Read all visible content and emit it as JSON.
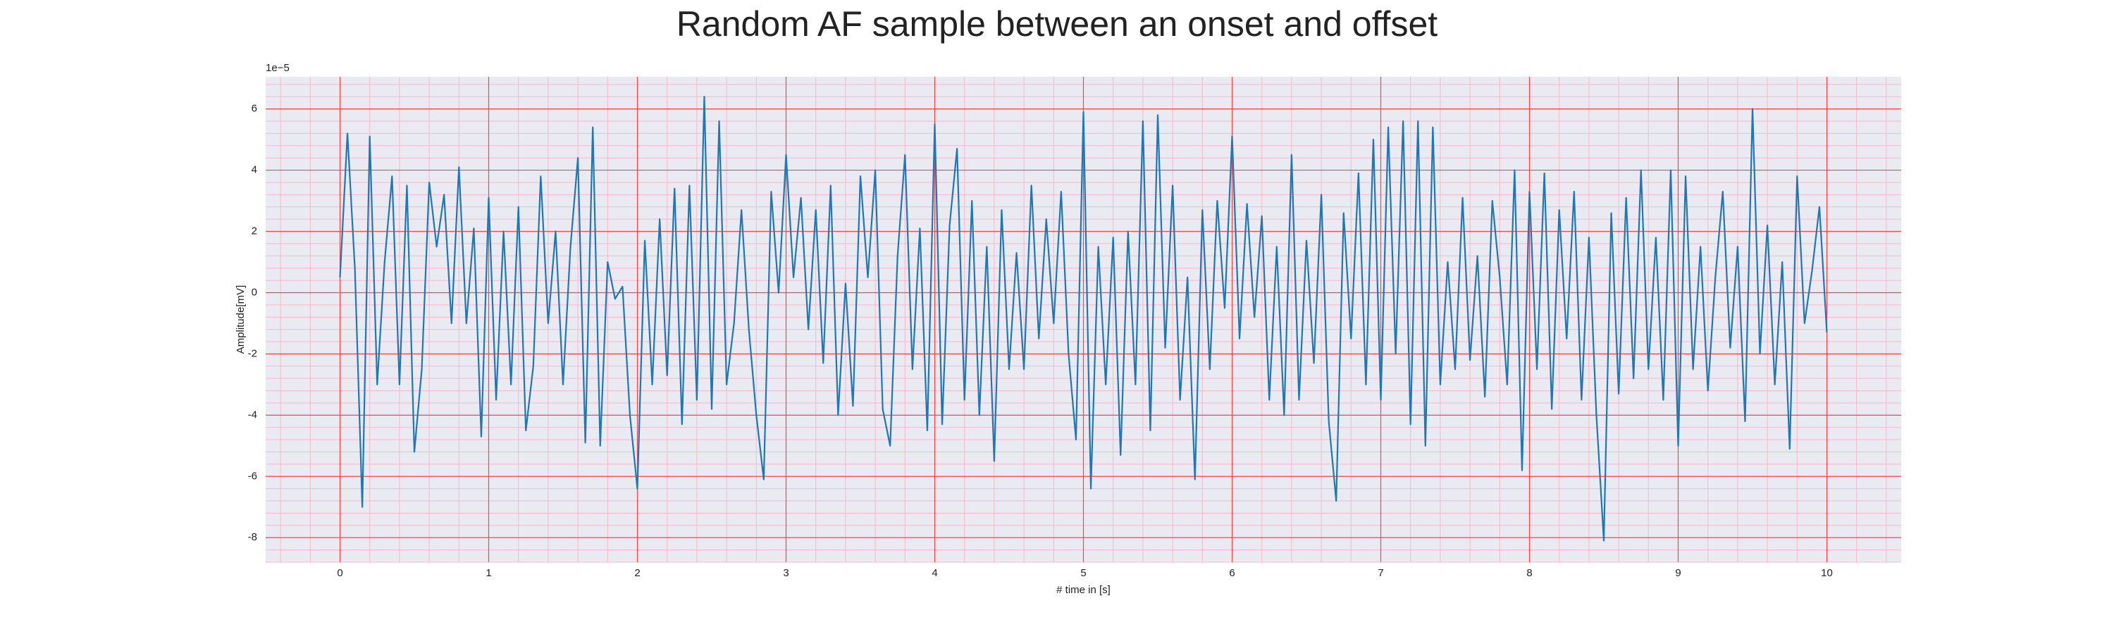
{
  "chart_data": {
    "type": "line",
    "title": "Random AF sample between an onset and offset",
    "xlabel": "# time in [s]",
    "ylabel": "Amplitude[mV]",
    "offset_label": "1e−5",
    "x": [
      0,
      0.05,
      0.1,
      0.15,
      0.2,
      0.25,
      0.3,
      0.35,
      0.4,
      0.45,
      0.5,
      0.55,
      0.6,
      0.65,
      0.7,
      0.75,
      0.8,
      0.85,
      0.9,
      0.95,
      1,
      1.05,
      1.1,
      1.15,
      1.2,
      1.25,
      1.3,
      1.35,
      1.4,
      1.45,
      1.5,
      1.55,
      1.6,
      1.65,
      1.7,
      1.75,
      1.8,
      1.85,
      1.9,
      1.95,
      2,
      2.05,
      2.1,
      2.15,
      2.2,
      2.25,
      2.3,
      2.35,
      2.4,
      2.45,
      2.5,
      2.55,
      2.6,
      2.65,
      2.7,
      2.75,
      2.8,
      2.85,
      2.9,
      2.95,
      3,
      3.05,
      3.1,
      3.15,
      3.2,
      3.25,
      3.3,
      3.35,
      3.4,
      3.45,
      3.5,
      3.55,
      3.6,
      3.65,
      3.7,
      3.75,
      3.8,
      3.85,
      3.9,
      3.95,
      4,
      4.05,
      4.1,
      4.15,
      4.2,
      4.25,
      4.3,
      4.35,
      4.4,
      4.45,
      4.5,
      4.55,
      4.6,
      4.65,
      4.7,
      4.75,
      4.8,
      4.85,
      4.9,
      4.95,
      5,
      5.05,
      5.1,
      5.15,
      5.2,
      5.25,
      5.3,
      5.35,
      5.4,
      5.45,
      5.5,
      5.55,
      5.6,
      5.65,
      5.7,
      5.75,
      5.8,
      5.85,
      5.9,
      5.95,
      6,
      6.05,
      6.1,
      6.15,
      6.2,
      6.25,
      6.3,
      6.35,
      6.4,
      6.45,
      6.5,
      6.55,
      6.6,
      6.65,
      6.7,
      6.75,
      6.8,
      6.85,
      6.9,
      6.95,
      7,
      7.05,
      7.1,
      7.15,
      7.2,
      7.25,
      7.3,
      7.35,
      7.4,
      7.45,
      7.5,
      7.55,
      7.6,
      7.65,
      7.7,
      7.75,
      7.8,
      7.85,
      7.9,
      7.95,
      8,
      8.05,
      8.1,
      8.15,
      8.2,
      8.25,
      8.3,
      8.35,
      8.4,
      8.45,
      8.5,
      8.55,
      8.6,
      8.65,
      8.7,
      8.75,
      8.8,
      8.85,
      8.9,
      8.95,
      9,
      9.05,
      9.1,
      9.15,
      9.2,
      9.25,
      9.3,
      9.35,
      9.4,
      9.45,
      9.5,
      9.55,
      9.6,
      9.65,
      9.7,
      9.75,
      9.8,
      9.85,
      9.9,
      9.95,
      10
    ],
    "series": [
      {
        "color": "#1f77b4",
        "values": [
          0.5,
          5.2,
          0.8,
          -7.0,
          5.1,
          -3.0,
          1.0,
          3.8,
          -3.0,
          3.5,
          -5.2,
          -2.5,
          3.6,
          1.5,
          3.2,
          -1.0,
          4.1,
          -1.0,
          2.1,
          -4.7,
          3.1,
          -3.5,
          2.0,
          -3.0,
          2.8,
          -4.5,
          -2.4,
          3.8,
          -1.0,
          2.0,
          -3.0,
          1.5,
          4.4,
          -4.9,
          5.4,
          -5.0,
          1.0,
          -0.2,
          0.2,
          -4.0,
          -6.4,
          1.7,
          -3.0,
          2.4,
          -2.7,
          3.4,
          -4.3,
          3.5,
          -3.5,
          6.4,
          -3.8,
          5.6,
          -3.0,
          -1.0,
          2.7,
          -1.2,
          -4.0,
          -6.1,
          3.3,
          0.0,
          4.5,
          0.5,
          3.1,
          -1.2,
          2.7,
          -2.3,
          3.5,
          -4.0,
          0.3,
          -3.7,
          3.8,
          0.5,
          4.0,
          -3.8,
          -5.0,
          1.2,
          4.5,
          -2.5,
          2.1,
          -4.5,
          5.5,
          -4.3,
          2.2,
          4.7,
          -3.5,
          3.0,
          -4.0,
          1.5,
          -5.5,
          2.7,
          -2.5,
          1.3,
          -2.5,
          3.5,
          -1.5,
          2.4,
          -1.0,
          3.3,
          -2.0,
          -4.8,
          5.9,
          -6.4,
          1.5,
          -3.0,
          1.8,
          -5.3,
          2.0,
          -3.0,
          5.6,
          -4.5,
          5.8,
          -1.8,
          3.5,
          -3.5,
          0.5,
          -6.1,
          2.7,
          -2.5,
          3.0,
          -0.5,
          5.1,
          -1.5,
          2.9,
          -0.8,
          2.5,
          -3.5,
          1.5,
          -4.0,
          4.5,
          -3.5,
          1.7,
          -2.3,
          3.2,
          -4.2,
          -6.8,
          2.6,
          -1.5,
          3.9,
          -3.0,
          5.0,
          -3.5,
          5.4,
          -2.0,
          5.6,
          -4.3,
          5.6,
          -5.0,
          5.4,
          -3.0,
          1.0,
          -2.5,
          3.1,
          -2.2,
          1.2,
          -3.4,
          3.0,
          0.5,
          -3.0,
          4.0,
          -5.8,
          3.3,
          -2.5,
          3.9,
          -3.8,
          2.7,
          -1.5,
          3.3,
          -3.5,
          1.8,
          -4.0,
          -8.1,
          2.6,
          -3.3,
          3.1,
          -2.8,
          4.0,
          -2.5,
          1.8,
          -3.5,
          4.0,
          -5.0,
          3.8,
          -2.5,
          1.5,
          -3.2,
          0.5,
          3.3,
          -1.8,
          1.5,
          -4.2,
          6.0,
          -2.0,
          2.2,
          -3.0,
          1.0,
          -5.1,
          3.8,
          -1.0,
          0.7,
          2.8,
          -1.3
        ]
      }
    ],
    "xlim": [
      -0.5,
      10.5
    ],
    "ylim": [
      -8.8,
      7.05
    ],
    "xticks": [
      0,
      1,
      2,
      3,
      4,
      5,
      6,
      7,
      8,
      9,
      10
    ],
    "yticks": [
      -8,
      -6,
      -4,
      -2,
      0,
      2,
      4,
      6
    ],
    "grid": true,
    "minor_grid": true,
    "grid_color": "#ff4444",
    "minor_grid_color": "#f7b8c8",
    "background": "#eaeaf2"
  }
}
